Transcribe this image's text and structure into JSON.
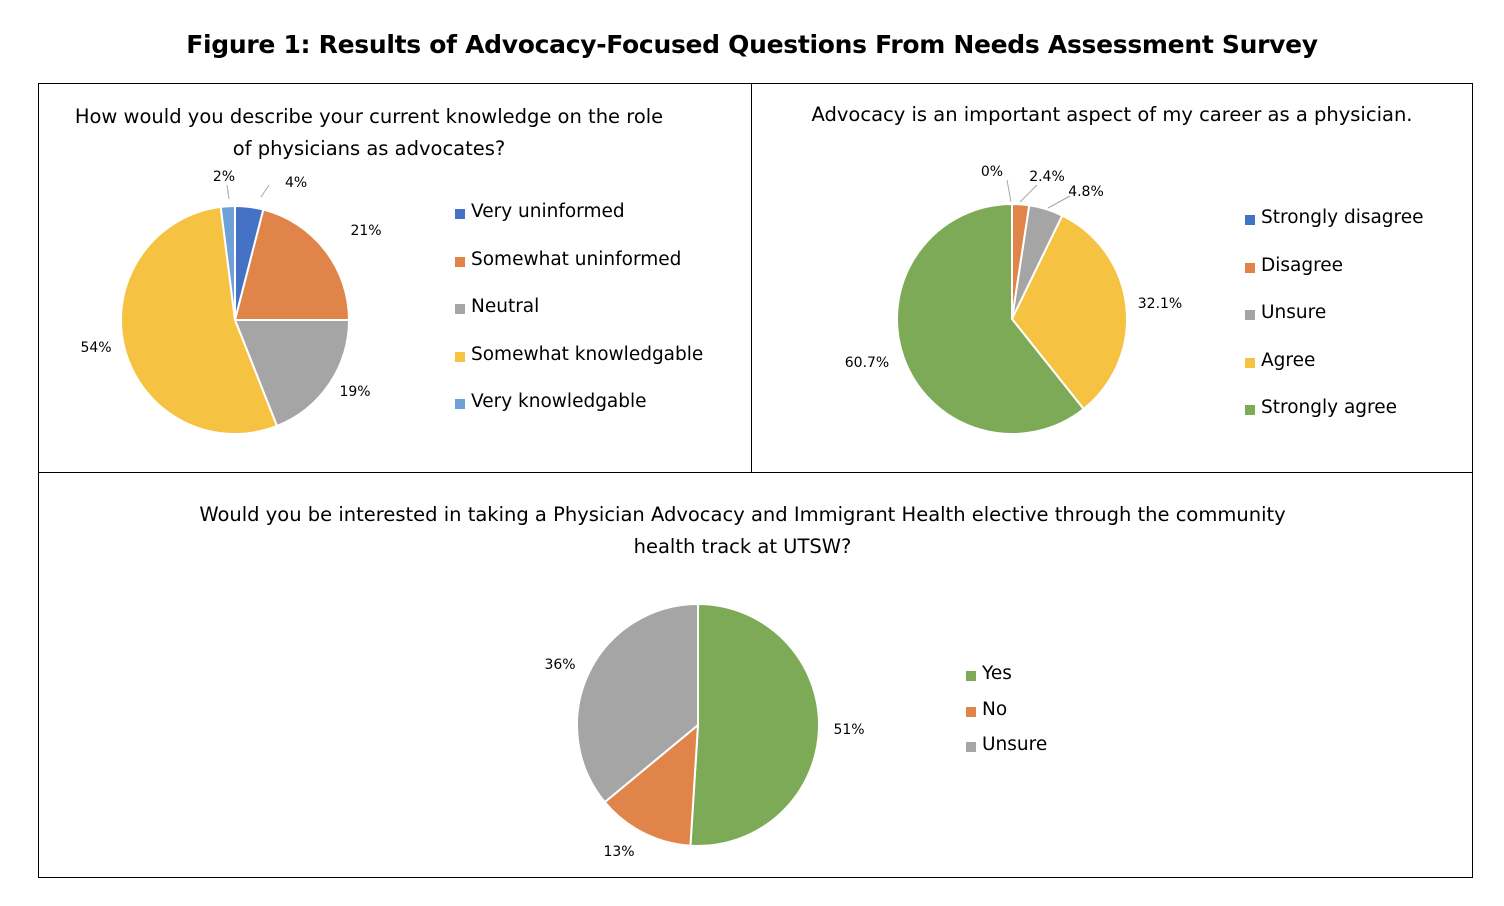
{
  "figure_title": "Figure 1: Results of Advocacy-Focused Questions From Needs Assessment Survey",
  "chart_data": [
    {
      "type": "pie",
      "title": "How would you describe your current knowledge on the role of physicians as advocates?",
      "title_lines": [
        "How would you describe your current knowledge on the role",
        "of physicians as advocates?"
      ],
      "categories": [
        "Very uninformed",
        "Somewhat uninformed",
        "Neutral",
        "Somewhat knowledgable",
        "Very knowledgable"
      ],
      "values": [
        4,
        21,
        19,
        54,
        2
      ],
      "labels": [
        "4%",
        "21%",
        "19%",
        "54%",
        "2%"
      ],
      "colors": [
        "#4472C4",
        "#E0844A",
        "#A5A5A5",
        "#F5C242",
        "#6FA1D8"
      ],
      "legend_position": "right"
    },
    {
      "type": "pie",
      "title": "Advocacy is an important aspect of my career as a physician.",
      "title_lines": [
        "Advocacy is an important aspect of my career as a physician."
      ],
      "categories": [
        "Strongly disagree",
        "Disagree",
        "Unsure",
        "Agree",
        "Strongly agree"
      ],
      "values": [
        0,
        2.4,
        4.8,
        32.1,
        60.7
      ],
      "labels": [
        "0%",
        "2.4%",
        "4.8%",
        "32.1%",
        "60.7%"
      ],
      "colors": [
        "#4472C4",
        "#E0844A",
        "#A5A5A5",
        "#F5C242",
        "#7DAA57"
      ],
      "legend_position": "right"
    },
    {
      "type": "pie",
      "title": "Would you be interested in taking a Physician Advocacy and Immigrant Health elective through the community health track at UTSW?",
      "title_lines": [
        "Would you be interested in taking a Physician Advocacy and Immigrant Health elective through the community",
        "health track at UTSW?"
      ],
      "categories": [
        "Yes",
        "No",
        "Unsure"
      ],
      "values": [
        51,
        13,
        36
      ],
      "labels": [
        "51%",
        "13%",
        "36%"
      ],
      "colors": [
        "#7DAA57",
        "#E0844A",
        "#A5A5A5"
      ],
      "legend_position": "right"
    }
  ]
}
